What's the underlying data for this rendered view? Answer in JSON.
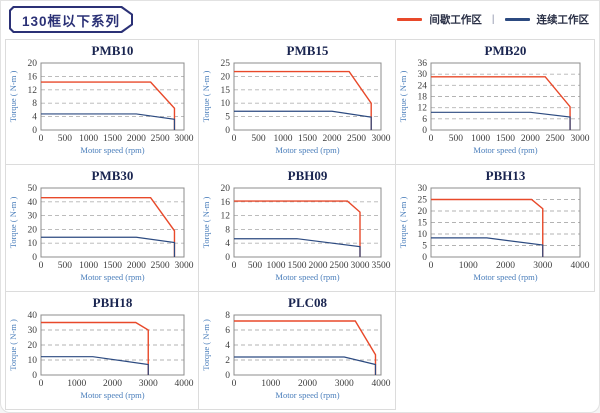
{
  "header": {
    "badge": "130框以下系列"
  },
  "legend": {
    "separator": "|",
    "items": [
      {
        "name": "intermittent-zone",
        "label": "间歇工作区",
        "color": "#e8492a"
      },
      {
        "name": "continuous-zone",
        "label": "连续工作区",
        "color": "#2c4a80"
      }
    ]
  },
  "colors": {
    "red": "#e8492a",
    "blue": "#2c4a80",
    "grid": "#b3b3b3",
    "frame": "#8c8c8c",
    "title": "#1a2550",
    "tick": "#3e3e3e",
    "axis_label": "#4a7ebb",
    "cell_border": "#dcdcdc",
    "badge": "#2b3176"
  },
  "chart_data": [
    {
      "type": "line",
      "title": "PMB10",
      "xlabel": "Motor speed (rpm)",
      "ylabel": "Torque ( N-m )",
      "xlim": [
        0,
        3000
      ],
      "xticks": [
        0,
        500,
        1000,
        1500,
        2000,
        2500,
        3000
      ],
      "ylim": [
        0,
        20
      ],
      "yticks": [
        0,
        4,
        8,
        12,
        16,
        20
      ],
      "grid": "dashed-horizontal",
      "legend_position": "none",
      "series": [
        {
          "name": "间歇工作区",
          "color": "red",
          "points": [
            [
              0,
              14.3
            ],
            [
              2300,
              14.3
            ],
            [
              2800,
              6.5
            ],
            [
              2800,
              0
            ]
          ]
        },
        {
          "name": "连续工作区",
          "color": "blue",
          "points": [
            [
              0,
              4.8
            ],
            [
              2000,
              4.8
            ],
            [
              2800,
              3.2
            ],
            [
              2800,
              0
            ]
          ]
        }
      ]
    },
    {
      "type": "line",
      "title": "PMB15",
      "xlabel": "Motor speed (rpm)",
      "ylabel": "Torque ( N-m )",
      "xlim": [
        0,
        3000
      ],
      "xticks": [
        0,
        500,
        1000,
        1500,
        2000,
        2500,
        3000
      ],
      "ylim": [
        0,
        25
      ],
      "yticks": [
        0,
        5,
        10,
        15,
        20,
        25
      ],
      "grid": "dashed-horizontal",
      "legend_position": "none",
      "series": [
        {
          "name": "间歇工作区",
          "color": "red",
          "points": [
            [
              0,
              21.8
            ],
            [
              2350,
              21.8
            ],
            [
              2800,
              10
            ],
            [
              2800,
              0
            ]
          ]
        },
        {
          "name": "连续工作区",
          "color": "blue",
          "points": [
            [
              0,
              7
            ],
            [
              2000,
              7
            ],
            [
              2800,
              4.8
            ],
            [
              2800,
              0
            ]
          ]
        }
      ]
    },
    {
      "type": "line",
      "title": "PMB20",
      "xlabel": "Motor speed (rpm)",
      "ylabel": "Torque ( N-m )",
      "xlim": [
        0,
        3000
      ],
      "xticks": [
        0,
        500,
        1000,
        1500,
        2000,
        2500,
        3000
      ],
      "ylim": [
        0,
        36
      ],
      "yticks": [
        0,
        6,
        12,
        18,
        24,
        30,
        36
      ],
      "grid": "dashed-horizontal",
      "legend_position": "none",
      "series": [
        {
          "name": "间歇工作区",
          "color": "red",
          "points": [
            [
              0,
              28.6
            ],
            [
              2300,
              28.6
            ],
            [
              2800,
              12.5
            ],
            [
              2800,
              0
            ]
          ]
        },
        {
          "name": "连续工作区",
          "color": "blue",
          "points": [
            [
              0,
              9.5
            ],
            [
              2000,
              9.5
            ],
            [
              2800,
              7
            ],
            [
              2800,
              0
            ]
          ]
        }
      ]
    },
    {
      "type": "line",
      "title": "PMB30",
      "xlabel": "Motor speed (rpm)",
      "ylabel": "Torque ( N-m )",
      "xlim": [
        0,
        3000
      ],
      "xticks": [
        0,
        500,
        1000,
        1500,
        2000,
        2500,
        3000
      ],
      "ylim": [
        0,
        50
      ],
      "yticks": [
        0,
        10,
        20,
        30,
        40,
        50
      ],
      "grid": "dashed-horizontal",
      "legend_position": "none",
      "series": [
        {
          "name": "间歇工作区",
          "color": "red",
          "points": [
            [
              0,
              43
            ],
            [
              2300,
              43
            ],
            [
              2800,
              19
            ],
            [
              2800,
              0
            ]
          ]
        },
        {
          "name": "连续工作区",
          "color": "blue",
          "points": [
            [
              0,
              14.3
            ],
            [
              2000,
              14.3
            ],
            [
              2800,
              10.5
            ],
            [
              2800,
              0
            ]
          ]
        }
      ]
    },
    {
      "type": "line",
      "title": "PBH09",
      "xlabel": "Motor speed (rpm)",
      "ylabel": "Torque ( N-m )",
      "xlim": [
        0,
        3500
      ],
      "xticks": [
        0,
        500,
        1000,
        1500,
        2000,
        2500,
        3000,
        3500
      ],
      "ylim": [
        0,
        20
      ],
      "yticks": [
        0,
        4,
        8,
        12,
        16,
        20
      ],
      "grid": "dashed-horizontal",
      "legend_position": "none",
      "series": [
        {
          "name": "间歇工作区",
          "color": "red",
          "points": [
            [
              0,
              16.2
            ],
            [
              2700,
              16.2
            ],
            [
              3000,
              13
            ],
            [
              3000,
              0
            ]
          ]
        },
        {
          "name": "连续工作区",
          "color": "blue",
          "points": [
            [
              0,
              5.3
            ],
            [
              1500,
              5.3
            ],
            [
              3000,
              3
            ],
            [
              3000,
              0
            ]
          ]
        }
      ]
    },
    {
      "type": "line",
      "title": "PBH13",
      "xlabel": "Motor speed (rpm)",
      "ylabel": "Torque ( N-m )",
      "xlim": [
        0,
        4000
      ],
      "xticks": [
        0,
        1000,
        2000,
        3000,
        4000
      ],
      "ylim": [
        0,
        30
      ],
      "yticks": [
        0,
        5,
        10,
        15,
        20,
        25,
        30
      ],
      "grid": "dashed-horizontal",
      "legend_position": "none",
      "series": [
        {
          "name": "间歇工作区",
          "color": "red",
          "points": [
            [
              0,
              25
            ],
            [
              2700,
              25
            ],
            [
              3000,
              21
            ],
            [
              3000,
              0
            ]
          ]
        },
        {
          "name": "连续工作区",
          "color": "blue",
          "points": [
            [
              0,
              8.3
            ],
            [
              1500,
              8.3
            ],
            [
              3000,
              5.2
            ],
            [
              3000,
              0
            ]
          ]
        }
      ]
    },
    {
      "type": "line",
      "title": "PBH18",
      "xlabel": "Motor speed (rpm)",
      "ylabel": "Torque ( N-m )",
      "xlim": [
        0,
        4000
      ],
      "xticks": [
        0,
        1000,
        2000,
        3000,
        4000
      ],
      "ylim": [
        0,
        40
      ],
      "yticks": [
        0,
        10,
        20,
        30,
        40
      ],
      "grid": "dashed-horizontal",
      "legend_position": "none",
      "series": [
        {
          "name": "间歇工作区",
          "color": "red",
          "points": [
            [
              0,
              35
            ],
            [
              2650,
              35
            ],
            [
              3000,
              30
            ],
            [
              3000,
              0
            ]
          ]
        },
        {
          "name": "连续工作区",
          "color": "blue",
          "points": [
            [
              0,
              12.2
            ],
            [
              1450,
              12.2
            ],
            [
              3000,
              7
            ],
            [
              3000,
              0
            ]
          ]
        }
      ]
    },
    {
      "type": "line",
      "title": "PLC08",
      "xlabel": "Motor speed (rpm)",
      "ylabel": "Torque ( N-m )",
      "xlim": [
        0,
        4000
      ],
      "xticks": [
        0,
        1000,
        2000,
        3000,
        4000
      ],
      "ylim": [
        0,
        8
      ],
      "yticks": [
        0,
        2,
        4,
        6,
        8
      ],
      "grid": "dashed-horizontal",
      "legend_position": "none",
      "series": [
        {
          "name": "间歇工作区",
          "color": "red",
          "points": [
            [
              0,
              7.2
            ],
            [
              3300,
              7.2
            ],
            [
              3850,
              2.7
            ],
            [
              3850,
              0
            ]
          ]
        },
        {
          "name": "连续工作区",
          "color": "blue",
          "points": [
            [
              0,
              2.4
            ],
            [
              3000,
              2.4
            ],
            [
              3850,
              1.4
            ],
            [
              3850,
              0
            ]
          ]
        }
      ]
    }
  ]
}
